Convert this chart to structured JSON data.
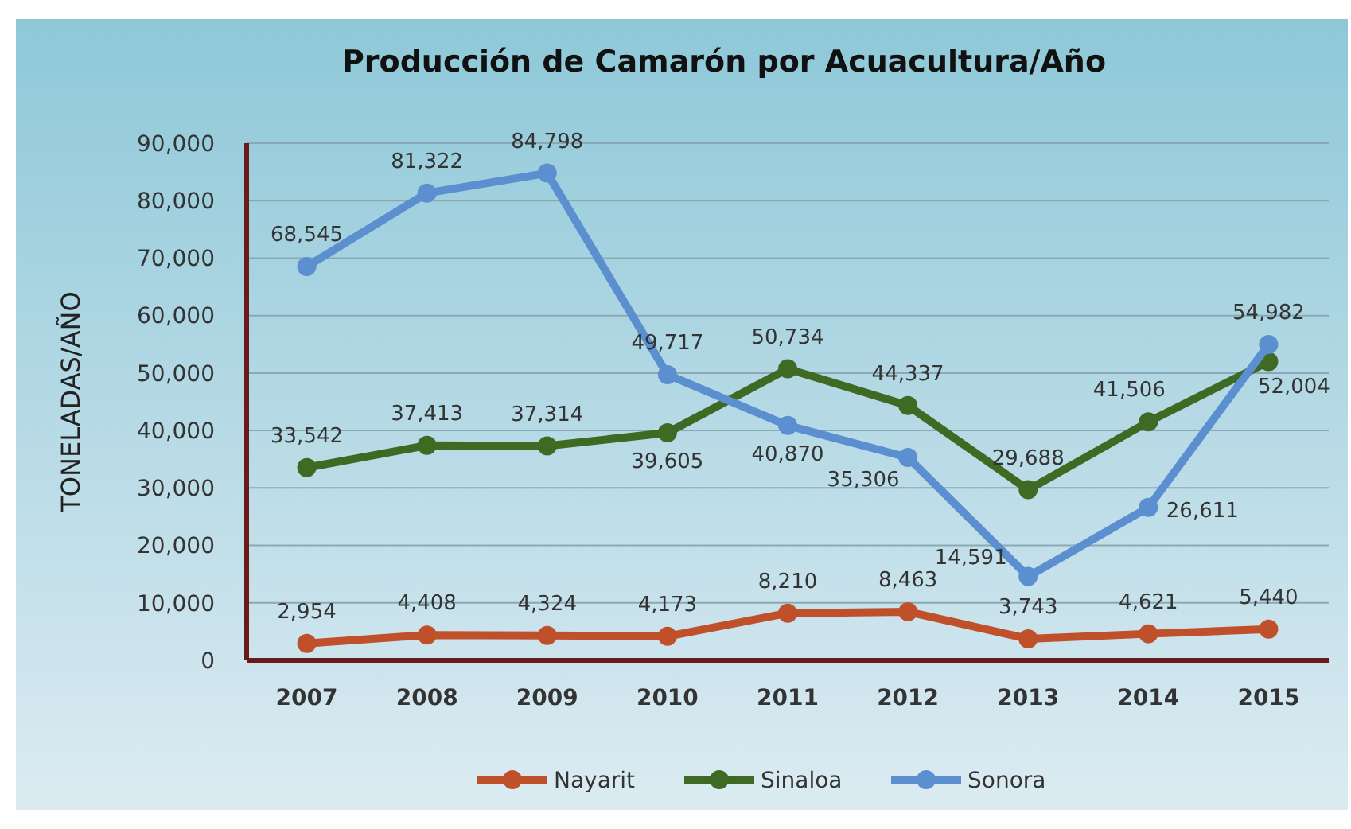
{
  "chart_data": {
    "type": "line",
    "title": "Producción de Camarón por Acuacultura/Año",
    "ylabel": "TONELADAS/AÑO",
    "categories": [
      "2007",
      "2008",
      "2009",
      "2010",
      "2011",
      "2012",
      "2013",
      "2014",
      "2015"
    ],
    "series": [
      {
        "name": "Nayarit",
        "color": "#c0502a",
        "values": [
          2954,
          4408,
          4324,
          4173,
          8210,
          8463,
          3743,
          4621,
          5440
        ],
        "value_labels": [
          "2,954",
          "4,408",
          "4,324",
          "4,173",
          "8,210",
          "8,463",
          "3,743",
          "4,621",
          "5,440"
        ]
      },
      {
        "name": "Sinaloa",
        "color": "#3e6a24",
        "values": [
          33542,
          37413,
          37314,
          39605,
          50734,
          44337,
          29688,
          41506,
          52004
        ],
        "value_labels": [
          "33,542",
          "37,413",
          "37,314",
          "39,605",
          "50,734",
          "44,337",
          "29,688",
          "41,506",
          "52,004"
        ]
      },
      {
        "name": "Sonora",
        "color": "#5b8fd0",
        "values": [
          68545,
          81322,
          84798,
          49717,
          40870,
          35306,
          14591,
          26611,
          54982
        ],
        "value_labels": [
          "68,545",
          "81,322",
          "84,798",
          "49,717",
          "40,870",
          "35,306",
          "14,591",
          "26,611",
          "54,982"
        ]
      }
    ],
    "ylim": [
      0,
      90000
    ],
    "yticks": [
      {
        "value": 0,
        "label": "0"
      },
      {
        "value": 10000,
        "label": "10,000"
      },
      {
        "value": 20000,
        "label": "20,000"
      },
      {
        "value": 30000,
        "label": "30,000"
      },
      {
        "value": 40000,
        "label": "40,000"
      },
      {
        "value": 50000,
        "label": "50,000"
      },
      {
        "value": 60000,
        "label": "60,000"
      },
      {
        "value": 70000,
        "label": "70,000"
      },
      {
        "value": 80000,
        "label": "80,000"
      },
      {
        "value": 90000,
        "label": "90,000"
      }
    ],
    "grid": "y",
    "legend": "bottom",
    "marker": "circle",
    "line_style": "solid"
  }
}
